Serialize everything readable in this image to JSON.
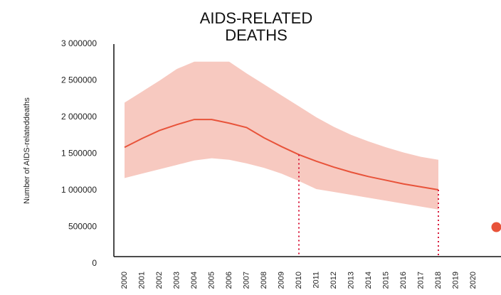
{
  "chart_data": {
    "type": "line",
    "title": "AIDS-RELATED DEATHS",
    "y_label": "Number of AIDS-relateddeaths",
    "categories": [
      "2000",
      "2001",
      "2002",
      "2003",
      "2004",
      "2005",
      "2006",
      "2007",
      "2008",
      "2009",
      "2010",
      "2011",
      "2012",
      "2013",
      "2014",
      "2015",
      "2016",
      "2017",
      "2018",
      "2019",
      "2020"
    ],
    "series": [
      {
        "color": "#e8533a",
        "values": [
          1590000,
          1710000,
          1820000,
          1900000,
          1970000,
          1970000,
          1920000,
          1860000,
          1720000,
          1600000,
          1490000,
          1400000,
          1320000,
          1250000,
          1190000,
          1140000,
          1090000,
          1050000,
          1010000,
          null,
          null
        ]
      }
    ],
    "band": {
      "color": "#f7c9c0",
      "upper": [
        2200000,
        2350000,
        2500000,
        2660000,
        2760000,
        2760000,
        2760000,
        2600000,
        2450000,
        2300000,
        2150000,
        2000000,
        1870000,
        1760000,
        1670000,
        1590000,
        1520000,
        1460000,
        1420000,
        null,
        null
      ],
      "lower": [
        1170000,
        1230000,
        1290000,
        1350000,
        1410000,
        1440000,
        1420000,
        1370000,
        1310000,
        1230000,
        1130000,
        1020000,
        980000,
        940000,
        900000,
        860000,
        820000,
        780000,
        740000,
        null,
        null
      ]
    },
    "markers": [
      10,
      18
    ],
    "marker_color": "#d81b3c",
    "target": {
      "value": 500000,
      "color": "#e8533a"
    },
    "ylim": [
      0,
      3000000
    ],
    "yticks": [
      0,
      500000,
      {
        "value": 1000000,
        "label": "1 000000"
      },
      {
        "value": 1500000,
        "label": "1 500000"
      },
      {
        "value": 2000000,
        "label": "2 000000"
      },
      {
        "value": 2500000,
        "label": "2 500000"
      },
      {
        "value": 3000000,
        "label": "3 000000"
      }
    ],
    "grid": false
  }
}
